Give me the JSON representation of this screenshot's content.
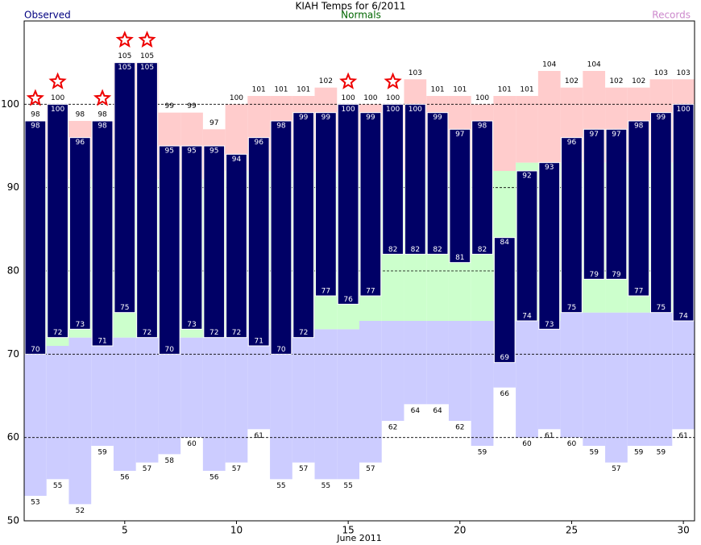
{
  "chart_data": {
    "type": "temperature-range",
    "title": "KIAH Temps for 6/2011",
    "xlabel": "June 2011",
    "x": [
      1,
      2,
      3,
      4,
      5,
      6,
      7,
      8,
      9,
      10,
      11,
      12,
      13,
      14,
      15,
      16,
      17,
      18,
      19,
      20,
      21,
      22,
      23,
      24,
      25,
      26,
      27,
      28,
      29,
      30
    ],
    "series": [
      {
        "name": "Observed",
        "color": "#000066",
        "label_color": "#000080",
        "high": [
          98,
          100,
          96,
          98,
          105,
          105,
          95,
          95,
          95,
          94,
          96,
          98,
          99,
          99,
          100,
          99,
          100,
          100,
          99,
          97,
          98,
          84,
          92,
          93,
          96,
          97,
          97,
          98,
          99,
          100
        ],
        "low": [
          70,
          72,
          73,
          71,
          75,
          72,
          70,
          73,
          72,
          72,
          71,
          70,
          72,
          77,
          76,
          77,
          82,
          82,
          82,
          81,
          82,
          69,
          74,
          73,
          75,
          79,
          79,
          77,
          75,
          74
        ]
      },
      {
        "name": "Normals",
        "color": "#ccffcc",
        "label_color": "#006600",
        "high": [
          91,
          91,
          91,
          91,
          91,
          91,
          91,
          91,
          91,
          92,
          92,
          92,
          92,
          92,
          92,
          92,
          92,
          92,
          92,
          92,
          92,
          92,
          93,
          93,
          93,
          93,
          93,
          93,
          93,
          93
        ],
        "low": [
          70,
          71,
          72,
          72,
          72,
          72,
          72,
          72,
          72,
          73,
          73,
          73,
          73,
          73,
          73,
          74,
          74,
          74,
          74,
          74,
          74,
          74,
          74,
          74,
          75,
          75,
          75,
          75,
          75,
          75
        ]
      },
      {
        "name": "Records",
        "color": "#ffcccc",
        "low_color": "#ccccff",
        "label_color": "#cc88cc",
        "high": [
          98,
          100,
          98,
          98,
          105,
          105,
          99,
          99,
          97,
          100,
          101,
          101,
          101,
          102,
          100,
          100,
          100,
          103,
          101,
          101,
          100,
          101,
          101,
          104,
          102,
          104,
          102,
          102,
          103,
          103
        ],
        "low": [
          53,
          55,
          52,
          59,
          56,
          57,
          58,
          60,
          56,
          57,
          61,
          55,
          57,
          55,
          55,
          57,
          62,
          64,
          64,
          62,
          59,
          66,
          60,
          61,
          60,
          59,
          57,
          59,
          59,
          61
        ]
      }
    ],
    "xlim": [
      0.5,
      30.5
    ],
    "xticks": [
      5,
      10,
      15,
      20,
      25,
      30
    ],
    "ylim": [
      50,
      110
    ],
    "yticks": [
      50,
      60,
      70,
      80,
      90,
      100
    ],
    "grid": true
  }
}
